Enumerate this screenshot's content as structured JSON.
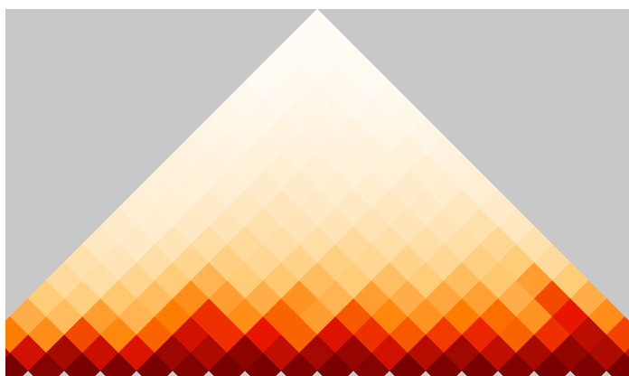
{
  "chart_data": {
    "type": "triangle-heatmap",
    "diagonals": [
      [
        98,
        100,
        97,
        100,
        99,
        100,
        98,
        100,
        100,
        99,
        100,
        97,
        100,
        99,
        100,
        98,
        100,
        99,
        100,
        98
      ],
      [
        85,
        80,
        90,
        82,
        78,
        92,
        88,
        95,
        84,
        90,
        93,
        80,
        86,
        91,
        84,
        89,
        94,
        88,
        83
      ],
      [
        55,
        50,
        65,
        52,
        60,
        80,
        70,
        75,
        60,
        78,
        70,
        62,
        68,
        72,
        60,
        70,
        85,
        66
      ],
      [
        40,
        35,
        45,
        38,
        55,
        70,
        50,
        60,
        45,
        62,
        52,
        48,
        55,
        58,
        48,
        75,
        50
      ],
      [
        30,
        28,
        32,
        35,
        50,
        45,
        40,
        48,
        38,
        45,
        40,
        42,
        44,
        40,
        65,
        40
      ],
      [
        22,
        20,
        25,
        30,
        38,
        30,
        32,
        35,
        30,
        34,
        30,
        35,
        32,
        45,
        30
      ],
      [
        18,
        16,
        20,
        25,
        28,
        24,
        26,
        28,
        24,
        26,
        24,
        28,
        30,
        22
      ],
      [
        14,
        13,
        16,
        20,
        22,
        20,
        20,
        22,
        20,
        20,
        20,
        24,
        18
      ],
      [
        12,
        11,
        13,
        16,
        18,
        16,
        16,
        17,
        16,
        16,
        18,
        14
      ],
      [
        10,
        10,
        12,
        14,
        15,
        13,
        13,
        14,
        13,
        14,
        12
      ],
      [
        9,
        9,
        10,
        12,
        12,
        11,
        11,
        12,
        11,
        10
      ],
      [
        8,
        8,
        9,
        10,
        10,
        9,
        9,
        10,
        9
      ],
      [
        7,
        7,
        8,
        8,
        8,
        8,
        8,
        7
      ],
      [
        6,
        6,
        7,
        7,
        7,
        6,
        6
      ],
      [
        5,
        5,
        6,
        6,
        5,
        5
      ],
      [
        4,
        4,
        5,
        4,
        4
      ],
      [
        3,
        4,
        4,
        3
      ],
      [
        3,
        3,
        3
      ],
      [
        2,
        2
      ],
      [
        2
      ]
    ]
  }
}
